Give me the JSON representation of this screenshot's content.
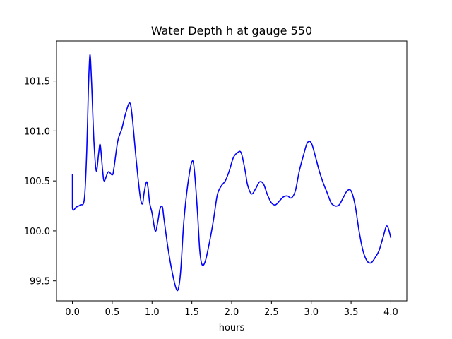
{
  "chart_data": {
    "type": "line",
    "title": "Water Depth h at gauge 550",
    "xlabel": "hours",
    "ylabel": "",
    "xlim": [
      -0.2,
      4.2
    ],
    "ylim": [
      99.3,
      101.9
    ],
    "xticks": [
      0.0,
      0.5,
      1.0,
      1.5,
      2.0,
      2.5,
      3.0,
      3.5,
      4.0
    ],
    "xtick_labels": [
      "0.0",
      "0.5",
      "1.0",
      "1.5",
      "2.0",
      "2.5",
      "3.0",
      "3.5",
      "4.0"
    ],
    "yticks": [
      99.5,
      100.0,
      100.5,
      101.0,
      101.5
    ],
    "ytick_labels": [
      "99.5",
      "100.0",
      "100.5",
      "101.0",
      "101.5"
    ],
    "grid": false,
    "series": [
      {
        "color": "#0000ff",
        "x": [
          0.0,
          0.0,
          0.05,
          0.1,
          0.15,
          0.18,
          0.2,
          0.22,
          0.24,
          0.27,
          0.3,
          0.33,
          0.35,
          0.38,
          0.4,
          0.45,
          0.5,
          0.52,
          0.57,
          0.62,
          0.67,
          0.72,
          0.75,
          0.8,
          0.85,
          0.88,
          0.9,
          0.93,
          0.95,
          0.97,
          1.0,
          1.04,
          1.07,
          1.1,
          1.13,
          1.15,
          1.2,
          1.25,
          1.3,
          1.33,
          1.36,
          1.4,
          1.45,
          1.5,
          1.53,
          1.57,
          1.6,
          1.63,
          1.67,
          1.72,
          1.77,
          1.82,
          1.87,
          1.92,
          1.97,
          2.02,
          2.07,
          2.12,
          2.17,
          2.2,
          2.25,
          2.3,
          2.35,
          2.4,
          2.45,
          2.5,
          2.55,
          2.6,
          2.65,
          2.7,
          2.75,
          2.8,
          2.85,
          2.9,
          2.95,
          3.0,
          3.05,
          3.1,
          3.15,
          3.2,
          3.25,
          3.3,
          3.35,
          3.4,
          3.45,
          3.5,
          3.55,
          3.6,
          3.65,
          3.7,
          3.75,
          3.8,
          3.85,
          3.9,
          3.95,
          4.0
        ],
        "y": [
          100.57,
          100.23,
          100.24,
          100.26,
          100.32,
          100.8,
          101.4,
          101.76,
          101.5,
          100.9,
          100.6,
          100.78,
          100.86,
          100.6,
          100.5,
          100.59,
          100.56,
          100.62,
          100.9,
          101.02,
          101.18,
          101.28,
          101.15,
          100.72,
          100.35,
          100.27,
          100.38,
          100.49,
          100.43,
          100.28,
          100.18,
          100.0,
          100.08,
          100.22,
          100.24,
          100.12,
          99.83,
          99.6,
          99.43,
          99.42,
          99.6,
          100.1,
          100.47,
          100.69,
          100.62,
          100.2,
          99.8,
          99.66,
          99.7,
          99.88,
          100.1,
          100.36,
          100.45,
          100.5,
          100.6,
          100.73,
          100.78,
          100.78,
          100.6,
          100.46,
          100.37,
          100.42,
          100.49,
          100.47,
          100.36,
          100.28,
          100.26,
          100.3,
          100.34,
          100.35,
          100.33,
          100.4,
          100.6,
          100.75,
          100.88,
          100.88,
          100.75,
          100.6,
          100.48,
          100.38,
          100.28,
          100.25,
          100.26,
          100.33,
          100.4,
          100.4,
          100.26,
          100.0,
          99.8,
          99.7,
          99.68,
          99.73,
          99.8,
          99.93,
          100.05,
          99.93
        ]
      }
    ]
  }
}
